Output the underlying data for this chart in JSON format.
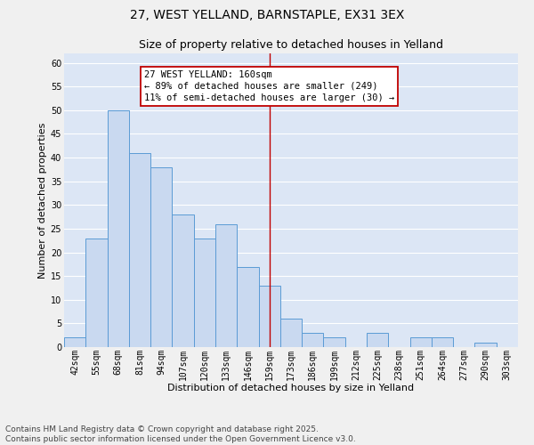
{
  "title1": "27, WEST YELLAND, BARNSTAPLE, EX31 3EX",
  "title2": "Size of property relative to detached houses in Yelland",
  "categories": [
    "42sqm",
    "55sqm",
    "68sqm",
    "81sqm",
    "94sqm",
    "107sqm",
    "120sqm",
    "133sqm",
    "146sqm",
    "159sqm",
    "173sqm",
    "186sqm",
    "199sqm",
    "212sqm",
    "225sqm",
    "238sqm",
    "251sqm",
    "264sqm",
    "277sqm",
    "290sqm",
    "303sqm"
  ],
  "values": [
    2,
    23,
    50,
    41,
    38,
    28,
    23,
    26,
    17,
    13,
    6,
    3,
    2,
    0,
    3,
    0,
    2,
    2,
    0,
    1,
    0
  ],
  "bar_color": "#c9d9f0",
  "bar_edge_color": "#5b9bd5",
  "background_color": "#dce6f5",
  "grid_color": "#ffffff",
  "vline_x": 9,
  "vline_color": "#c00000",
  "annotation_text": "27 WEST YELLAND: 160sqm\n← 89% of detached houses are smaller (249)\n11% of semi-detached houses are larger (30) →",
  "annotation_box_color": "#c00000",
  "ylabel": "Number of detached properties",
  "xlabel": "Distribution of detached houses by size in Yelland",
  "ylim": [
    0,
    62
  ],
  "yticks": [
    0,
    5,
    10,
    15,
    20,
    25,
    30,
    35,
    40,
    45,
    50,
    55,
    60
  ],
  "footer_line1": "Contains HM Land Registry data © Crown copyright and database right 2025.",
  "footer_line2": "Contains public sector information licensed under the Open Government Licence v3.0.",
  "title1_fontsize": 10,
  "title2_fontsize": 9,
  "axis_label_fontsize": 8,
  "tick_fontsize": 7,
  "annotation_fontsize": 7.5,
  "footer_fontsize": 6.5,
  "fig_bg_color": "#f0f0f0"
}
